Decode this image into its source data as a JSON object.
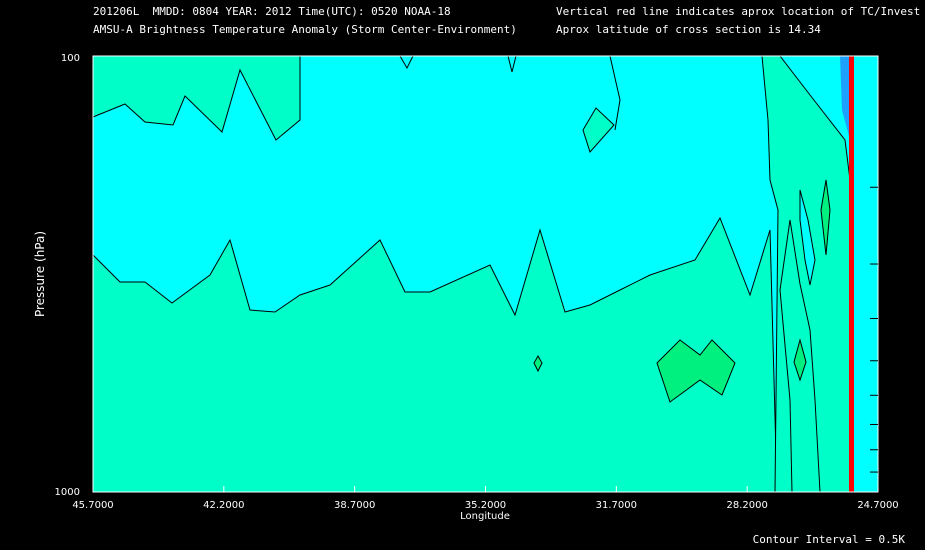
{
  "header": {
    "line1_left": "201206L  MMDD: 0804 YEAR: 2012 Time(UTC): 0520 NOAA-18",
    "line2_left": "AMSU-A Brightness Temperature Anomaly (Storm Center-Environment)",
    "line1_right": "Vertical red line indicates aprox location of TC/Invest",
    "line2_right": "Aprox latitude of cross section is 14.34"
  },
  "footer": {
    "contour_interval": "Contour Interval = 0.5K"
  },
  "colors": {
    "cyan": "#00ffff",
    "aqua_green": "#00ffc8",
    "green": "#00f080",
    "blue": "#1ea0ff",
    "red_line": "#ff0000"
  },
  "chart_data": {
    "type": "contour",
    "xlabel": "Longitude",
    "ylabel": "Pressure (hPa)",
    "x_ticks": [
      "45.7000",
      "42.2000",
      "38.7000",
      "35.2000",
      "31.7000",
      "28.2000",
      "24.7000"
    ],
    "y_ticks": [
      "100",
      "1000"
    ],
    "xlim": [
      45.7,
      24.7
    ],
    "ylim": [
      1000,
      100
    ],
    "y_scale": "log",
    "storm_longitude": 25.0,
    "regions": [
      {
        "name": "upper-anomaly",
        "color": "aqua_green"
      },
      {
        "name": "background",
        "color": "cyan"
      },
      {
        "name": "lower-anomaly",
        "color": "aqua_green"
      },
      {
        "name": "warm-core-patch",
        "color": "green"
      }
    ]
  }
}
